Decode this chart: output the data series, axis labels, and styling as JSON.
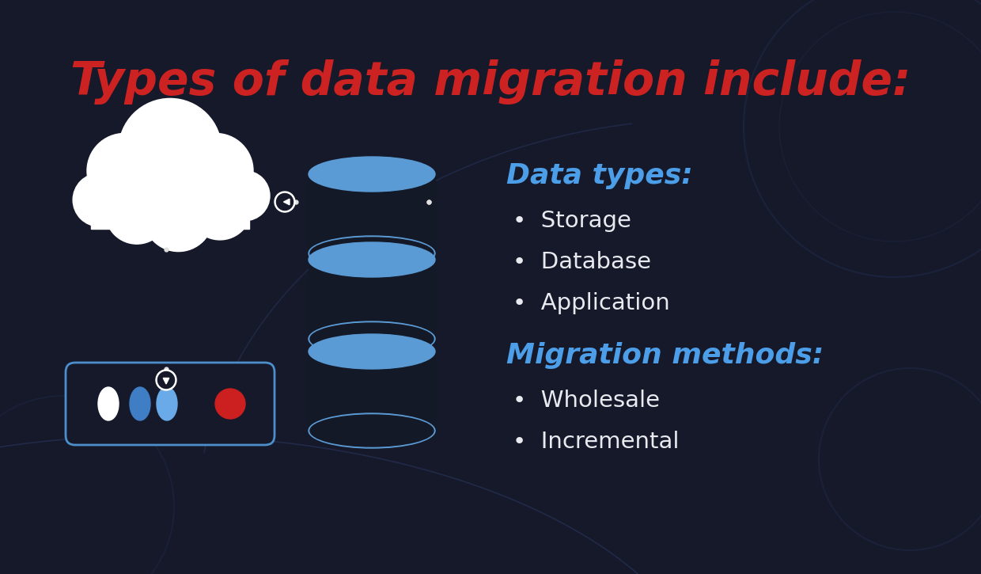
{
  "title": "Types of data migration include:",
  "title_color": "#cc2222",
  "title_fontsize": 42,
  "background_color": "#151929",
  "text_color_white": "#e8eaf0",
  "text_color_blue": "#4d9ee8",
  "section1_title": "Data types:",
  "section1_items": [
    "Storage",
    "Database",
    "Application"
  ],
  "section2_title": "Migration methods:",
  "section2_items": [
    "Wholesale",
    "Incremental"
  ],
  "cloud_color": "#ffffff",
  "cylinder_top_color": "#5b9bd5",
  "cylinder_body_color": "#141928",
  "cylinder_stroke_color": "#5b9bd5",
  "device_border_color": "#4d8fcc",
  "device_bg_color": "#151929",
  "dot_white": "#ffffff",
  "dot_blue1": "#3f7ec4",
  "dot_blue2": "#6aaae8",
  "dot_red": "#cc1f1f",
  "dotline_color": "#e0e0e0",
  "arrow_bg": "#151929",
  "arrow_fg": "#e0e0e0",
  "circle_decor_color": "#1e2745",
  "curve_color": "#2a3560"
}
